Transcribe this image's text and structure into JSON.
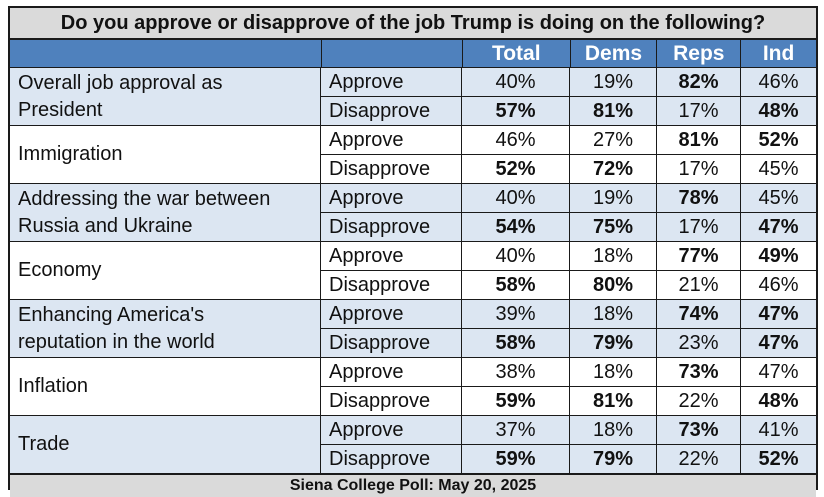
{
  "colors": {
    "header_bg": "#4f81bd",
    "stripe_bg": "#dce6f2",
    "title_bg": "#dadada"
  },
  "chart_data": {
    "type": "table",
    "title": "Do you approve or disapprove of the job Trump is doing on the following?",
    "columns": [
      "Total",
      "Dems",
      "Reps",
      "Ind"
    ],
    "sections": [
      {
        "topic": "Overall job approval as\nPresident",
        "rows": [
          {
            "label": "Approve",
            "values": [
              "40%",
              "19%",
              "82%",
              "46%"
            ],
            "bold": [
              false,
              false,
              true,
              false
            ]
          },
          {
            "label": "Disapprove",
            "values": [
              "57%",
              "81%",
              "17%",
              "48%"
            ],
            "bold": [
              true,
              true,
              false,
              true
            ]
          }
        ]
      },
      {
        "topic": "Immigration",
        "rows": [
          {
            "label": "Approve",
            "values": [
              "46%",
              "27%",
              "81%",
              "52%"
            ],
            "bold": [
              false,
              false,
              true,
              true
            ]
          },
          {
            "label": "Disapprove",
            "values": [
              "52%",
              "72%",
              "17%",
              "45%"
            ],
            "bold": [
              true,
              true,
              false,
              false
            ]
          }
        ]
      },
      {
        "topic": "Addressing the war between\nRussia and Ukraine",
        "rows": [
          {
            "label": "Approve",
            "values": [
              "40%",
              "19%",
              "78%",
              "45%"
            ],
            "bold": [
              false,
              false,
              true,
              false
            ]
          },
          {
            "label": "Disapprove",
            "values": [
              "54%",
              "75%",
              "17%",
              "47%"
            ],
            "bold": [
              true,
              true,
              false,
              true
            ]
          }
        ]
      },
      {
        "topic": "Economy",
        "rows": [
          {
            "label": "Approve",
            "values": [
              "40%",
              "18%",
              "77%",
              "49%"
            ],
            "bold": [
              false,
              false,
              true,
              true
            ]
          },
          {
            "label": "Disapprove",
            "values": [
              "58%",
              "80%",
              "21%",
              "46%"
            ],
            "bold": [
              true,
              true,
              false,
              false
            ]
          }
        ]
      },
      {
        "topic": "Enhancing America's\nreputation in the world",
        "rows": [
          {
            "label": "Approve",
            "values": [
              "39%",
              "18%",
              "74%",
              "47%"
            ],
            "bold": [
              false,
              false,
              true,
              true
            ]
          },
          {
            "label": "Disapprove",
            "values": [
              "58%",
              "79%",
              "23%",
              "47%"
            ],
            "bold": [
              true,
              true,
              false,
              true
            ]
          }
        ]
      },
      {
        "topic": "Inflation",
        "rows": [
          {
            "label": "Approve",
            "values": [
              "38%",
              "18%",
              "73%",
              "47%"
            ],
            "bold": [
              false,
              false,
              true,
              false
            ]
          },
          {
            "label": "Disapprove",
            "values": [
              "59%",
              "81%",
              "22%",
              "48%"
            ],
            "bold": [
              true,
              true,
              false,
              true
            ]
          }
        ]
      },
      {
        "topic": "Trade",
        "rows": [
          {
            "label": "Approve",
            "values": [
              "37%",
              "18%",
              "73%",
              "41%"
            ],
            "bold": [
              false,
              false,
              true,
              false
            ]
          },
          {
            "label": "Disapprove",
            "values": [
              "59%",
              "79%",
              "22%",
              "52%"
            ],
            "bold": [
              true,
              true,
              false,
              true
            ]
          }
        ]
      }
    ],
    "source": "Siena College Poll: May 20, 2025"
  }
}
